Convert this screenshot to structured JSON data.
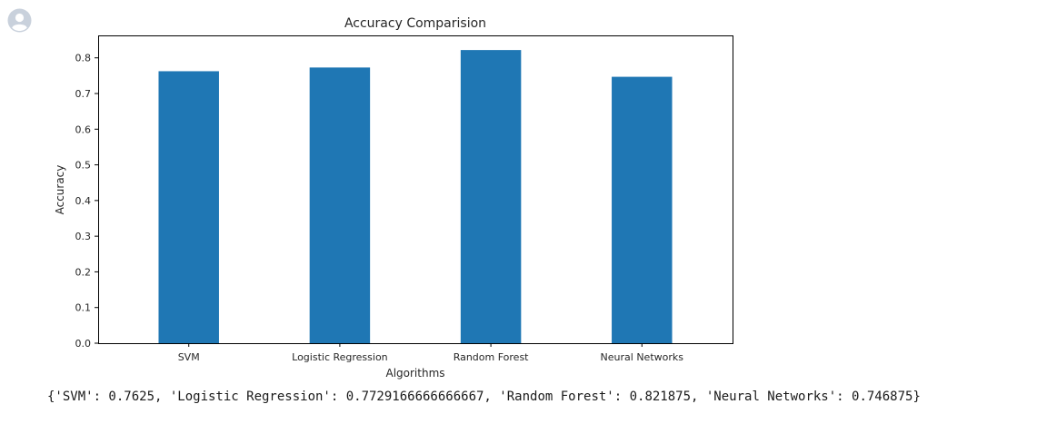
{
  "colors": {
    "bar": "#1f77b4",
    "avatar_bg": "#c9d1dc",
    "avatar_fg": "#ffffff"
  },
  "icons": {
    "avatar": "user-avatar-icon"
  },
  "chart_data": {
    "type": "bar",
    "title": "Accuracy Comparision",
    "xlabel": "Algorithms",
    "ylabel": "Accuracy",
    "categories": [
      "SVM",
      "Logistic Regression",
      "Random Forest",
      "Neural Networks"
    ],
    "values": [
      0.7625,
      0.7729166666666667,
      0.821875,
      0.746875
    ],
    "ylim": [
      0,
      0.8629
    ],
    "yticks": [
      "0.0",
      "0.1",
      "0.2",
      "0.3",
      "0.4",
      "0.5",
      "0.6",
      "0.7",
      "0.8"
    ],
    "grid": false,
    "legend": "none"
  },
  "output": {
    "text": "{'SVM': 0.7625, 'Logistic Regression': 0.7729166666666667, 'Random Forest': 0.821875, 'Neural Networks': 0.746875}"
  }
}
